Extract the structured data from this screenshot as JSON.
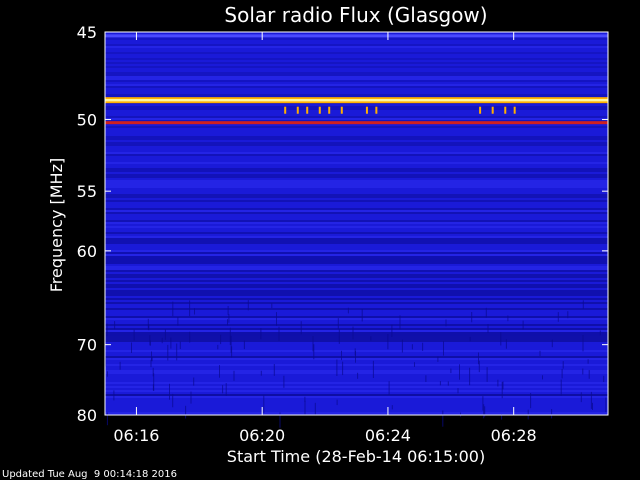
{
  "chart_data": {
    "type": "heatmap",
    "title": "Solar radio Flux (Glasgow)",
    "xlabel": "Start Time (28-Feb-14 06:15:00)",
    "ylabel": "Frequency [MHz]",
    "footer": "Updated Tue Aug  9 00:14:18 2016",
    "x_range_minutes": [
      0,
      16
    ],
    "y_range_mhz": [
      45,
      80
    ],
    "x_ticks": [
      {
        "label": "06:16",
        "minute": 1
      },
      {
        "label": "06:20",
        "minute": 5
      },
      {
        "label": "06:24",
        "minute": 9
      },
      {
        "label": "06:28",
        "minute": 13
      }
    ],
    "y_ticks": [
      {
        "label": "45",
        "mhz": 45
      },
      {
        "label": "50",
        "mhz": 50
      },
      {
        "label": "55",
        "mhz": 55
      },
      {
        "label": "60",
        "mhz": 60
      },
      {
        "label": "70",
        "mhz": 70
      },
      {
        "label": "80",
        "mhz": 80
      }
    ],
    "bright_bands_mhz": [
      {
        "mhz": 45.2,
        "level": "low"
      },
      {
        "mhz": 48.8,
        "level": "high"
      },
      {
        "mhz": 50.2,
        "level": "medium"
      }
    ],
    "colors": {
      "background": "#000000",
      "plot_base": "#1a1ad8",
      "low": "#0a0a90",
      "mid": "#3a3aff",
      "high_core": "#fff6a0",
      "high_edge": "#ffb000",
      "band_red": "#d02020",
      "spike": "#ff9a1a"
    }
  }
}
